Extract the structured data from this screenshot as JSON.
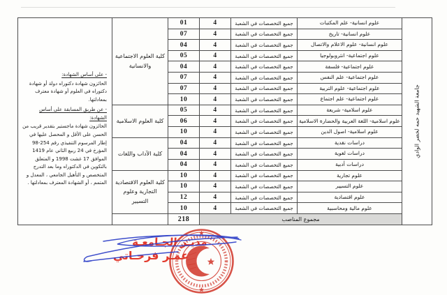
{
  "document": {
    "university_name": "جامعة الشهيد حمه لخضر الوادي"
  },
  "conditions": {
    "heading1": "- على أساس الشهادة:",
    "body1": "الحائزون شهادة دكتوراه دولة أو شهادة دكتوراه في العلوم أو شهادة معترف بمعادلتها.",
    "heading2": "- عن طريق المسابقة على أساس الشهادة:",
    "body2": "الحائزون شهادة ماجستير بتقدير قريب من الحسن على الأقل و المحصل عليها في إطار المرسوم التنفيذي رقم 254-98 المؤرخ في 24 ربيع الثاني عام 1419 الموافق 17 غشت 1998 و المتعلق بالتكوين في الدكتوراه وما بعد التدرج المتخصص و التأهيل الجامعي ، المعدل و المتمم ، أو الشهادة المعترف بمعادلتها ."
  },
  "table": {
    "all_specialties_label": "جميع التخصصات في الشعبة",
    "total_label": "مجموع المناصب",
    "total_value": "218",
    "groups": [
      {
        "faculty": "كلية العلوم الاجتماعية والانسانية",
        "rows": [
          {
            "positions": "01",
            "capacity": "4",
            "department": "علوم انسانية- علم المكتبات"
          },
          {
            "positions": "07",
            "capacity": "4",
            "department": "علوم انسانية- تاريخ"
          },
          {
            "positions": "04",
            "capacity": "4",
            "department": "علوم انسانية- علوم الاعلام والاتصال"
          },
          {
            "positions": "05",
            "capacity": "4",
            "department": "علوم اجتماعية- انثروبولوجيا"
          },
          {
            "positions": "04",
            "capacity": "4",
            "department": "علوم اجتماعية- فلسفة"
          },
          {
            "positions": "07",
            "capacity": "4",
            "department": "علوم اجتماعية- علم النفس"
          },
          {
            "positions": "07",
            "capacity": "4",
            "department": "علوم اجتماعية- علوم التربية"
          },
          {
            "positions": "10",
            "capacity": "4",
            "department": "علوم اجتماعية- علم اجتماع"
          }
        ]
      },
      {
        "faculty": "كلية العلوم الاسلامية",
        "rows": [
          {
            "positions": "05",
            "capacity": "4",
            "department": "علوم اسلامية- شريعة"
          },
          {
            "positions": "06",
            "capacity": "4",
            "department": "علوم اسلامية- اللغة العربية والحضارة الاسلامية"
          },
          {
            "positions": "10",
            "capacity": "4",
            "department": "علوم اسلامية- اصول الدين"
          }
        ]
      },
      {
        "faculty": "كلية الآداب واللغات",
        "rows": [
          {
            "positions": "04",
            "capacity": "4",
            "department": "دراسات نقدية"
          },
          {
            "positions": "04",
            "capacity": "4",
            "department": "دراسات لغوية"
          },
          {
            "positions": "04",
            "capacity": "4",
            "department": "دراسات أدبية"
          }
        ]
      },
      {
        "faculty": "كلية العلوم الاقتصادية التجارية وعلوم التسيير",
        "rows": [
          {
            "positions": "10",
            "capacity": "4",
            "department": "علوم تجارية"
          },
          {
            "positions": "10",
            "capacity": "4",
            "department": "علوم التسيير"
          },
          {
            "positions": "12",
            "capacity": "4",
            "department": "علوم اقتصادية"
          },
          {
            "positions": "10",
            "capacity": "4",
            "department": "علوم مالية ومحاسبية"
          }
        ]
      }
    ]
  },
  "stamp": {
    "title": "مديـر الجـامعـة",
    "signatory": "عمـر فرحـاتي",
    "seal_color": "#d23b2f",
    "ink_color": "#2d3fc7"
  }
}
